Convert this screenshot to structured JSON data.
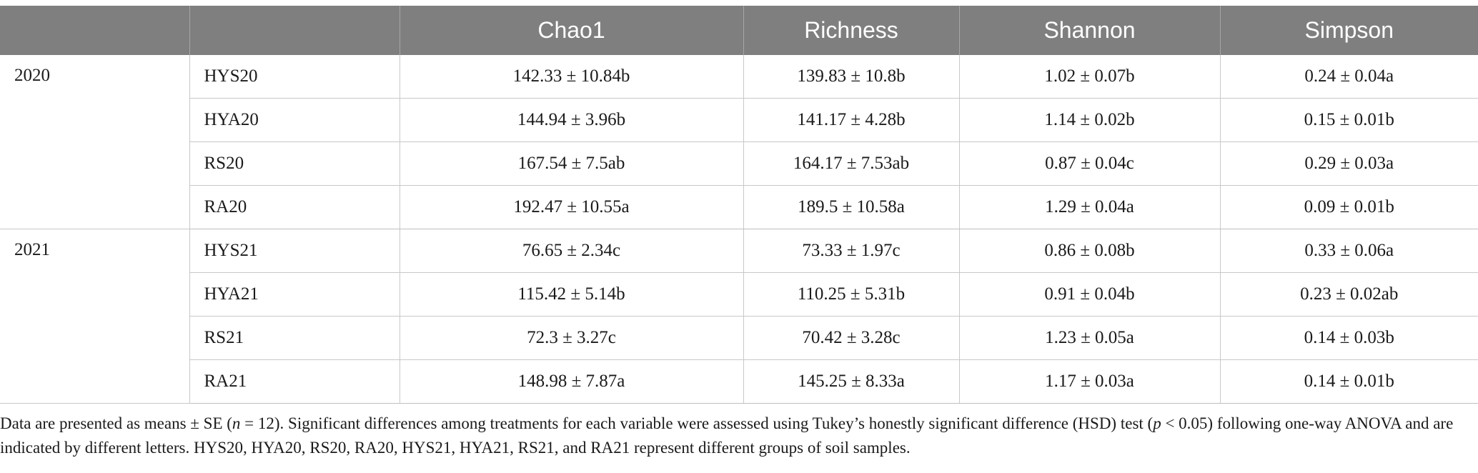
{
  "table": {
    "headers": [
      "",
      "",
      "Chao1",
      "Richness",
      "Shannon",
      "Simpson"
    ],
    "years": [
      {
        "label": "2020",
        "rows": [
          {
            "group": "HYS20",
            "chao1": "142.33 ± 10.84b",
            "richness": "139.83 ± 10.8b",
            "shannon": "1.02 ± 0.07b",
            "simpson": "0.24 ± 0.04a"
          },
          {
            "group": "HYA20",
            "chao1": "144.94 ± 3.96b",
            "richness": "141.17 ± 4.28b",
            "shannon": "1.14 ± 0.02b",
            "simpson": "0.15 ± 0.01b"
          },
          {
            "group": "RS20",
            "chao1": "167.54 ± 7.5ab",
            "richness": "164.17 ± 7.53ab",
            "shannon": "0.87 ± 0.04c",
            "simpson": "0.29 ± 0.03a"
          },
          {
            "group": "RA20",
            "chao1": "192.47 ± 10.55a",
            "richness": "189.5 ± 10.58a",
            "shannon": "1.29 ± 0.04a",
            "simpson": "0.09 ± 0.01b"
          }
        ]
      },
      {
        "label": "2021",
        "rows": [
          {
            "group": "HYS21",
            "chao1": "76.65 ± 2.34c",
            "richness": "73.33 ± 1.97c",
            "shannon": "0.86 ± 0.08b",
            "simpson": "0.33 ± 0.06a"
          },
          {
            "group": "HYA21",
            "chao1": "115.42 ± 5.14b",
            "richness": "110.25 ± 5.31b",
            "shannon": "0.91 ± 0.04b",
            "simpson": "0.23 ± 0.02ab"
          },
          {
            "group": "RS21",
            "chao1": "72.3 ± 3.27c",
            "richness": "70.42 ± 3.28c",
            "shannon": "1.23 ± 0.05a",
            "simpson": "0.14 ± 0.03b"
          },
          {
            "group": "RA21",
            "chao1": "148.98 ± 7.87a",
            "richness": "145.25 ± 8.33a",
            "shannon": "1.17 ± 0.03a",
            "simpson": "0.14 ± 0.01b"
          }
        ]
      }
    ]
  },
  "footnote": {
    "part1": "Data are presented as means ± SE (",
    "n_italic": "n",
    "part2": " = 12). Significant differences among treatments for each variable were assessed using Tukey’s honestly significant difference (HSD) test (",
    "p_italic": "p",
    "part3": " < 0.05) following one-way ANOVA and are indicated by different letters. HYS20, HYA20, RS20, RA20, HYS21, HYA21, RS21, and RA21 represent different groups of soil samples."
  },
  "colors": {
    "header_bg": "#7f7f7f",
    "header_text": "#ffffff",
    "grid_line": "#c8c8c8"
  }
}
